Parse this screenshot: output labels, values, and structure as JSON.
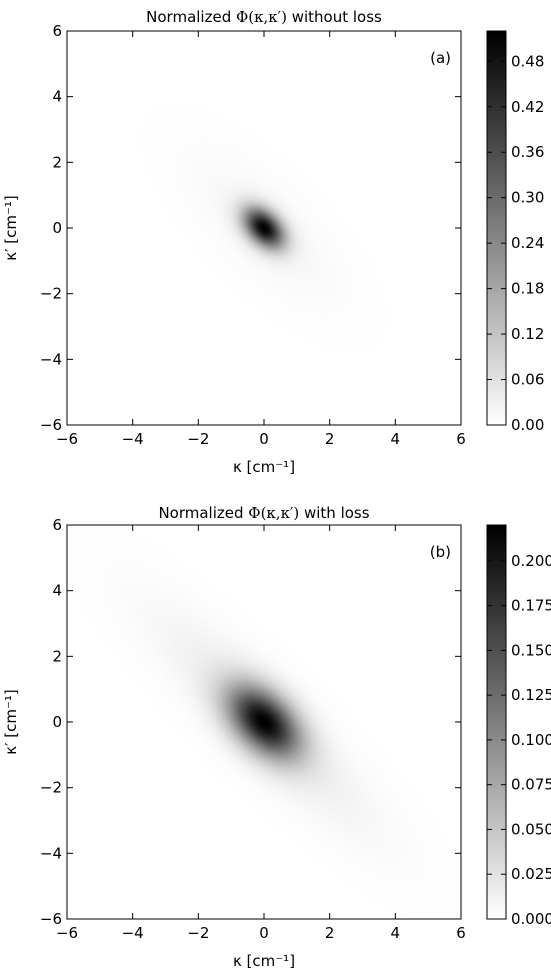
{
  "chart_data": [
    {
      "type": "heatmap",
      "panel_label": "(a)",
      "title_prefix": "Normalized ",
      "title_math": "Φ(κ,κ′)",
      "title_suffix": " without loss",
      "xlabel": "κ [cm⁻¹]",
      "ylabel": "κ′ [cm⁻¹]",
      "xlim": [
        -6,
        6
      ],
      "ylim": [
        -6,
        6
      ],
      "xticks": [
        -6,
        -4,
        -2,
        0,
        2,
        4,
        6
      ],
      "yticks": [
        -6,
        -4,
        -2,
        0,
        2,
        4,
        6
      ],
      "xtick_labels": [
        "−6",
        "−4",
        "−2",
        "0",
        "2",
        "4",
        "6"
      ],
      "ytick_labels": [
        "−6",
        "−4",
        "−2",
        "0",
        "2",
        "4",
        "6"
      ],
      "colormap": "gray_r",
      "colorbar": {
        "range": [
          0,
          0.52
        ],
        "ticks": [
          0.0,
          0.06,
          0.12,
          0.18,
          0.24,
          0.3,
          0.36,
          0.42,
          0.48
        ],
        "tick_labels": [
          "0.00",
          "0.06",
          "0.12",
          "0.18",
          "0.24",
          "0.30",
          "0.36",
          "0.42",
          "0.48"
        ]
      },
      "distribution": {
        "center": [
          0,
          0
        ],
        "peak": 0.52,
        "core_sigma_major": 0.5,
        "core_sigma_minor": 0.32,
        "halo_weight": 0.04,
        "halo_sigma_major": 2.0,
        "halo_sigma_minor": 0.8,
        "orientation": "anti-diagonal"
      }
    },
    {
      "type": "heatmap",
      "panel_label": "(b)",
      "title_prefix": "Normalized ",
      "title_math": "Φ(κ,κ′)",
      "title_suffix": " with loss",
      "xlabel": "κ [cm⁻¹]",
      "ylabel": "κ′ [cm⁻¹]",
      "xlim": [
        -6,
        6
      ],
      "ylim": [
        -6,
        6
      ],
      "xticks": [
        -6,
        -4,
        -2,
        0,
        2,
        4,
        6
      ],
      "yticks": [
        -6,
        -4,
        -2,
        0,
        2,
        4,
        6
      ],
      "xtick_labels": [
        "−6",
        "−4",
        "−2",
        "0",
        "2",
        "4",
        "6"
      ],
      "ytick_labels": [
        "−6",
        "−4",
        "−2",
        "0",
        "2",
        "4",
        "6"
      ],
      "colormap": "gray_r",
      "colorbar": {
        "range": [
          0,
          0.22
        ],
        "ticks": [
          0.0,
          0.025,
          0.05,
          0.075,
          0.1,
          0.125,
          0.15,
          0.175,
          0.2
        ],
        "tick_labels": [
          "0.000",
          "0.025",
          "0.050",
          "0.075",
          "0.100",
          "0.125",
          "0.150",
          "0.175",
          "0.200"
        ]
      },
      "distribution": {
        "center": [
          0,
          0
        ],
        "peak": 0.22,
        "core_sigma_major": 0.9,
        "core_sigma_minor": 0.55,
        "halo_weight": 0.08,
        "halo_sigma_major": 3.2,
        "halo_sigma_minor": 0.75,
        "orientation": "anti-diagonal"
      }
    }
  ]
}
